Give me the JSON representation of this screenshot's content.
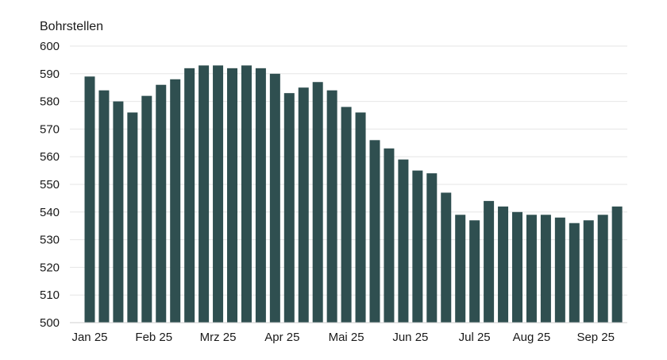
{
  "chart_data": {
    "type": "bar",
    "ylabel": "Bohrstellen",
    "xlabel": "",
    "ylim": [
      500,
      600
    ],
    "yticks": [
      500,
      510,
      520,
      530,
      540,
      550,
      560,
      570,
      580,
      590,
      600
    ],
    "grid": true,
    "bar_color": "#2f4f50",
    "grid_color": "#e6e6e6",
    "x_tick_labels": [
      {
        "label": "Jan 25",
        "index": 0
      },
      {
        "label": "Feb 25",
        "index": 4.5
      },
      {
        "label": "Mrz 25",
        "index": 9
      },
      {
        "label": "Apr 25",
        "index": 13.5
      },
      {
        "label": "Mai 25",
        "index": 18
      },
      {
        "label": "Jun 25",
        "index": 22.5
      },
      {
        "label": "Jul 25",
        "index": 27
      },
      {
        "label": "Aug 25",
        "index": 31
      },
      {
        "label": "Sep 25",
        "index": 35.5
      }
    ],
    "values": [
      589,
      584,
      580,
      576,
      582,
      586,
      588,
      592,
      593,
      593,
      592,
      593,
      592,
      590,
      583,
      585,
      587,
      584,
      578,
      576,
      566,
      563,
      559,
      555,
      554,
      547,
      539,
      537,
      544,
      542,
      540,
      539,
      539,
      538,
      536,
      537,
      539,
      542
    ]
  }
}
